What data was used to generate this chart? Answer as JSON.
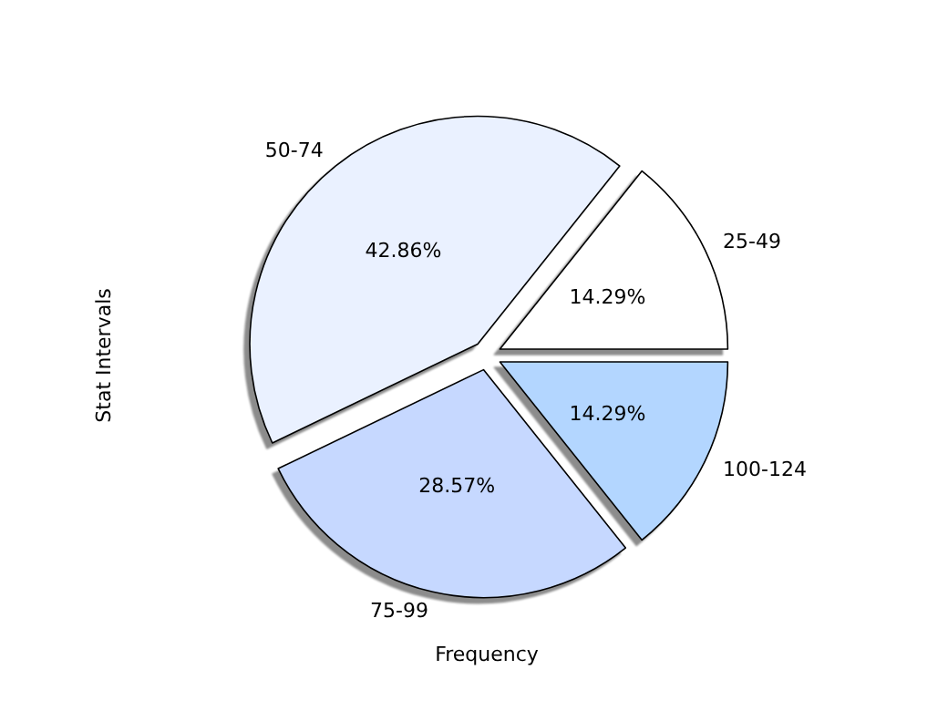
{
  "chart_data": {
    "type": "pie",
    "xlabel": "Frequency",
    "ylabel": "Stat Intervals",
    "categories": [
      "25-49",
      "50-74",
      "75-99",
      "100-124"
    ],
    "values": [
      14.29,
      42.86,
      28.57,
      14.29
    ],
    "value_labels": [
      "14.29%",
      "42.86%",
      "28.57%",
      "14.29%"
    ],
    "colors": [
      "#ffffff",
      "#eaf1ff",
      "#c6d8ff",
      "#b3d6ff"
    ],
    "legend": false
  }
}
